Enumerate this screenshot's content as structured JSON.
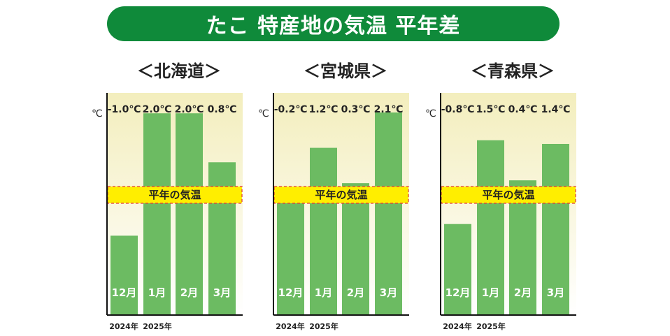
{
  "title": "たこ 特産地の気温 平年差",
  "colors": {
    "banner": "#0f8a3a",
    "bar": "#6cbb62",
    "bg_top": "#f3eebd",
    "bg_bottom": "#ffffff",
    "band_fill": "#ffee00",
    "band_border": "#e03a3a"
  },
  "chart_data": [
    {
      "type": "bar",
      "title": "＜北海道＞",
      "unit": "℃",
      "categories": [
        "12月",
        "1月",
        "2月",
        "3月"
      ],
      "values": [
        -1.0,
        2.0,
        2.0,
        0.8
      ],
      "value_labels": [
        "-1.0℃",
        "2.0℃",
        "2.0℃",
        "0.8℃"
      ],
      "baseline_label": "平年の気温",
      "year_labels": [
        "2024年",
        "2025年"
      ],
      "ylim": [
        -2.5,
        2.5
      ]
    },
    {
      "type": "bar",
      "title": "＜宮城県＞",
      "unit": "℃",
      "categories": [
        "12月",
        "1月",
        "2月",
        "3月"
      ],
      "values": [
        -0.2,
        1.2,
        0.3,
        2.1
      ],
      "value_labels": [
        "-0.2℃",
        "1.2℃",
        "0.3℃",
        "2.1℃"
      ],
      "baseline_label": "平年の気温",
      "year_labels": [
        "2024年",
        "2025年"
      ],
      "ylim": [
        -1.4,
        2.6
      ]
    },
    {
      "type": "bar",
      "title": "＜青森県＞",
      "unit": "℃",
      "categories": [
        "12月",
        "1月",
        "2月",
        "3月"
      ],
      "values": [
        -0.8,
        1.5,
        0.4,
        1.4
      ],
      "value_labels": [
        "-0.8℃",
        "1.5℃",
        "0.4℃",
        "1.4℃"
      ],
      "baseline_label": "平年の気温",
      "year_labels": [
        "2024年",
        "2025年"
      ],
      "ylim": [
        -2.2,
        2.8
      ]
    }
  ]
}
